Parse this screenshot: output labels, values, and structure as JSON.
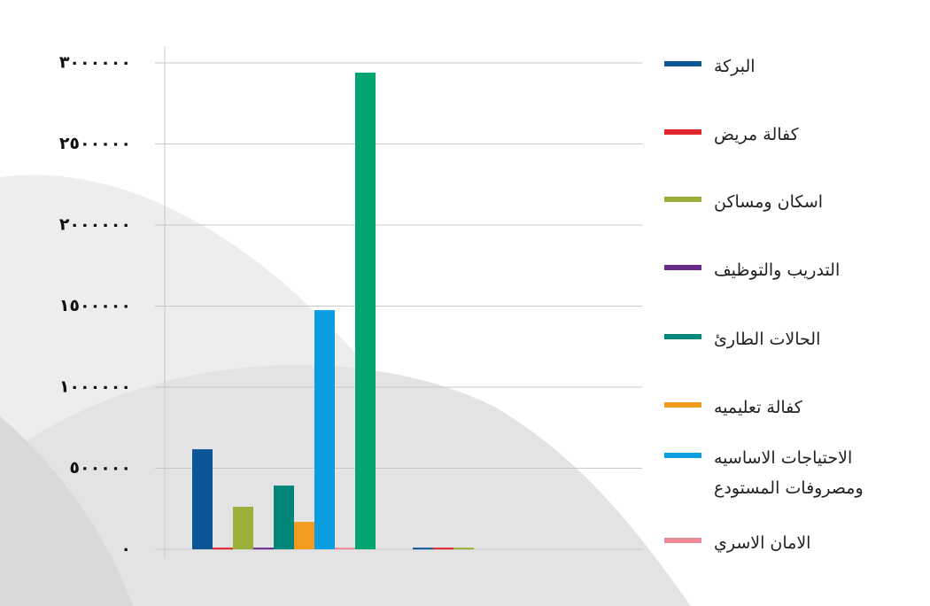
{
  "chart_data": {
    "type": "bar",
    "categories": [
      null,
      null
    ],
    "series": [
      {
        "name": "البركة",
        "color": "#0d5696",
        "values": [
          617000,
          10000
        ]
      },
      {
        "name": "كفالة مريض",
        "color": "#e0262b",
        "values": [
          10000,
          10000
        ]
      },
      {
        "name": "اسكان ومساكن",
        "color": "#9aae3a",
        "values": [
          262000,
          10000
        ]
      },
      {
        "name": "التدريب والتوظيف",
        "color": "#6a2a8c",
        "values": [
          10000,
          0
        ]
      },
      {
        "name": "الحالات الطارئ",
        "color": "#00877a",
        "values": [
          393000,
          0
        ]
      },
      {
        "name": "كفالة تعليميه",
        "color": "#f39b1f",
        "values": [
          169000,
          0
        ]
      },
      {
        "name": "الاحتياجات الاساسيه ومصروفات المستودع",
        "color": "#0a9ee0",
        "values": [
          1475000,
          0
        ]
      },
      {
        "name": "الامان الاسري",
        "color": "#ee8a98",
        "values": [
          10000,
          0
        ]
      },
      {
        "color": "#00a572",
        "values": [
          2940000,
          0
        ]
      }
    ],
    "ylim": [
      0,
      3000000
    ],
    "yticks": [
      {
        "value": 0,
        "label": "٠"
      },
      {
        "value": 500000,
        "label": "٥٠٠٠٠٠"
      },
      {
        "value": 1000000,
        "label": "١٠٠٠٠٠٠"
      },
      {
        "value": 1500000,
        "label": "١٥٠٠٠٠٠"
      },
      {
        "value": 2000000,
        "label": "٢٠٠٠٠٠٠"
      },
      {
        "value": 2500000,
        "label": "٢٥٠٠٠٠٠"
      },
      {
        "value": 3000000,
        "label": "٣٠٠٠٠٠٠"
      }
    ],
    "grid": true
  }
}
